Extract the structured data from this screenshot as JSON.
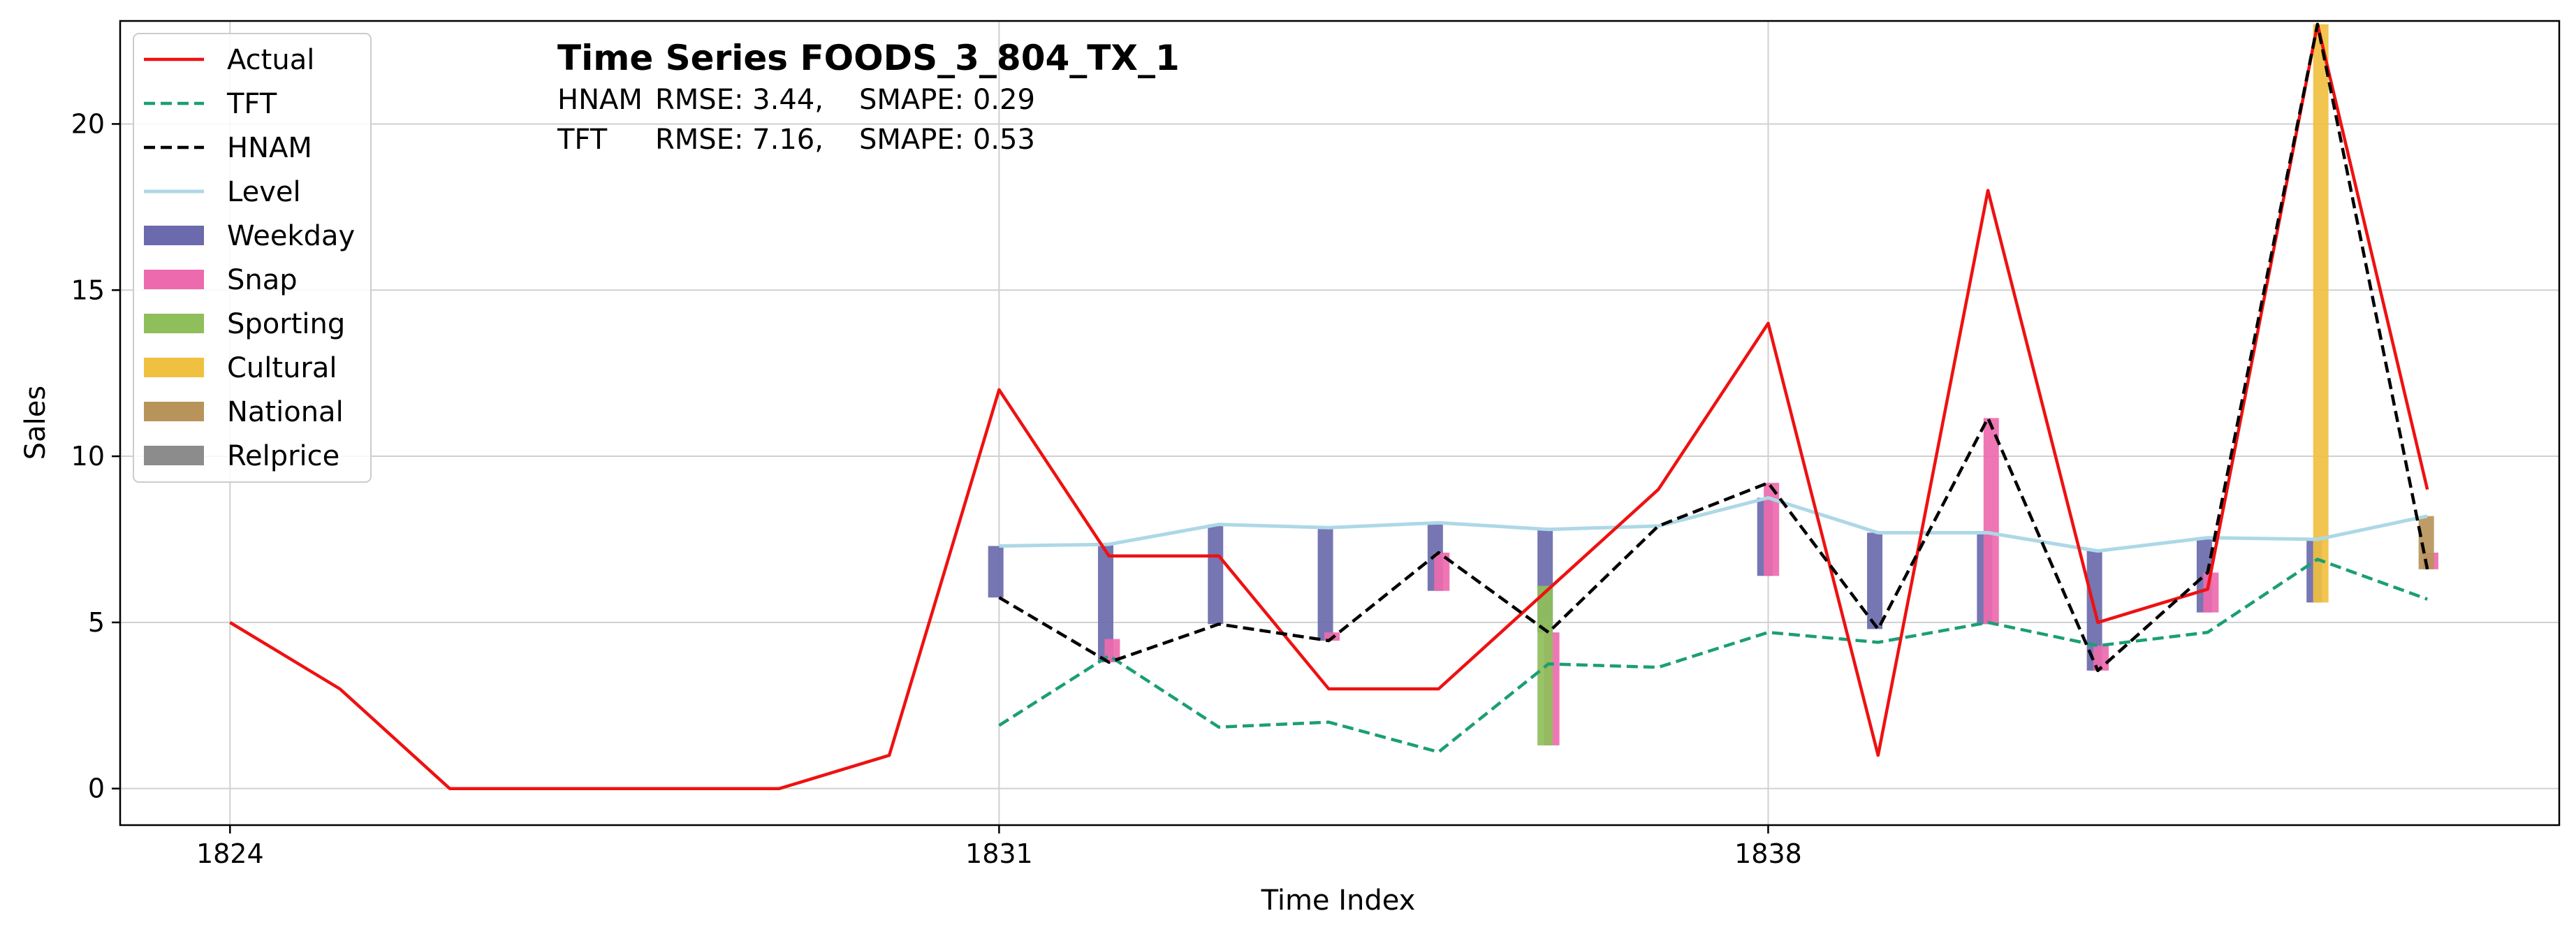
{
  "chart_data": {
    "type": "line",
    "title": "Time Series FOODS_3_804_TX_1",
    "metrics": [
      {
        "model": "HNAM",
        "rmse_text": "RMSE: 3.44,",
        "smape_text": "SMAPE: 0.29"
      },
      {
        "model": "TFT",
        "rmse_text": "RMSE: 7.16,",
        "smape_text": "SMAPE: 0.53"
      }
    ],
    "xlabel": "Time Index",
    "ylabel": "Sales",
    "xlim": [
      1823,
      1845.2
    ],
    "ylim": [
      -1.1,
      23.1
    ],
    "xticks": [
      1824,
      1831,
      1838
    ],
    "yticks": [
      0,
      5,
      10,
      15,
      20
    ],
    "grid": true,
    "legend_position": "upper-left",
    "series": [
      {
        "name": "Actual",
        "style": "solid",
        "color": "#ee1111",
        "x": [
          1824,
          1825,
          1826,
          1827,
          1828,
          1829,
          1830,
          1831,
          1832,
          1833,
          1834,
          1835,
          1836,
          1837,
          1838,
          1839,
          1840,
          1841,
          1842,
          1843,
          1844
        ],
        "values": [
          5,
          3,
          0,
          0,
          0,
          0,
          1,
          12,
          7,
          7,
          3,
          3,
          6,
          9,
          14,
          1,
          18,
          5,
          6,
          23,
          9
        ]
      },
      {
        "name": "TFT",
        "style": "dashed",
        "color": "#1b9e77",
        "x": [
          1831,
          1832,
          1833,
          1834,
          1835,
          1836,
          1837,
          1838,
          1839,
          1840,
          1841,
          1842,
          1843,
          1844
        ],
        "values": [
          1.9,
          4.0,
          1.85,
          2.0,
          1.1,
          3.75,
          3.65,
          4.7,
          4.4,
          5.0,
          4.3,
          4.7,
          6.9,
          5.7
        ]
      },
      {
        "name": "HNAM",
        "style": "dashed",
        "color": "#000000",
        "x": [
          1831,
          1832,
          1833,
          1834,
          1835,
          1836,
          1837,
          1838,
          1839,
          1840,
          1841,
          1842,
          1843,
          1844
        ],
        "values": [
          5.75,
          3.8,
          4.95,
          4.45,
          7.1,
          4.7,
          7.9,
          9.2,
          4.8,
          11.15,
          3.55,
          6.5,
          23.0,
          6.6
        ]
      },
      {
        "name": "Level",
        "style": "solid",
        "color": "#add8e6",
        "x": [
          1831,
          1832,
          1833,
          1834,
          1835,
          1836,
          1837,
          1838,
          1839,
          1840,
          1841,
          1842,
          1843,
          1844
        ],
        "values": [
          7.3,
          7.35,
          7.95,
          7.85,
          8.0,
          7.8,
          7.9,
          8.75,
          7.7,
          7.7,
          7.15,
          7.55,
          7.5,
          8.2
        ]
      }
    ],
    "components": [
      {
        "name": "Weekday",
        "color": "#6a6aad",
        "offset": -0.03,
        "bars": [
          [
            1831,
            5.75,
            7.3
          ],
          [
            1832,
            3.8,
            7.35
          ],
          [
            1833,
            4.95,
            7.95
          ],
          [
            1834,
            4.45,
            7.85
          ],
          [
            1835,
            5.95,
            8.0
          ],
          [
            1836,
            4.7,
            7.8
          ],
          [
            1838,
            6.4,
            8.75
          ],
          [
            1839,
            4.8,
            7.7
          ],
          [
            1840,
            4.95,
            7.7
          ],
          [
            1841,
            3.55,
            7.15
          ],
          [
            1842,
            5.3,
            7.55
          ],
          [
            1843,
            5.6,
            7.5
          ]
        ]
      },
      {
        "name": "Snap",
        "color": "#ee6aae",
        "offset": 0.03,
        "bars": [
          [
            1832,
            3.8,
            4.5
          ],
          [
            1834,
            4.45,
            4.7
          ],
          [
            1835,
            5.95,
            7.1
          ],
          [
            1836,
            1.3,
            4.7
          ],
          [
            1838,
            6.4,
            9.2
          ],
          [
            1840,
            4.95,
            11.15
          ],
          [
            1841,
            3.55,
            4.3
          ],
          [
            1842,
            5.3,
            6.5
          ],
          [
            1844,
            6.6,
            7.1
          ]
        ]
      },
      {
        "name": "Sporting",
        "color": "#8fbf5a",
        "offset": -0.03,
        "bars": [
          [
            1836,
            1.3,
            6.1
          ]
        ]
      },
      {
        "name": "Cultural",
        "color": "#f0c040",
        "offset": 0.03,
        "bars": [
          [
            1843,
            5.6,
            23.0
          ]
        ]
      },
      {
        "name": "National",
        "color": "#b8945a",
        "offset": -0.01,
        "bars": [
          [
            1844,
            6.6,
            8.2
          ]
        ]
      },
      {
        "name": "Relprice",
        "color": "#8c8c8c",
        "offset": 0,
        "bars": []
      }
    ]
  }
}
